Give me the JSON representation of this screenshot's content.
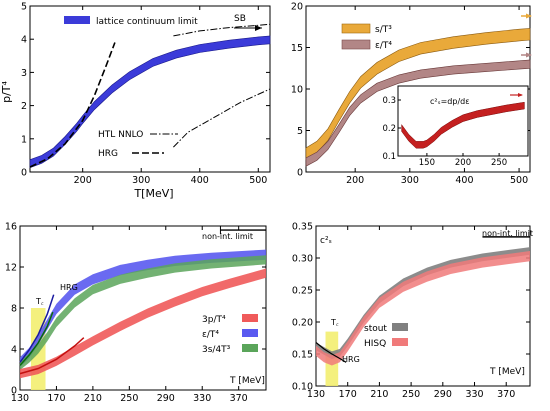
{
  "colors": {
    "blue": "#3b3bd9",
    "orange": "#e9a93a",
    "brown": "#b28686",
    "red": "#f05a5a",
    "purple": "#5a5af0",
    "green": "#5aa55a",
    "yellow": "#f3ee70",
    "gray": "#808080",
    "hisq": "#f07a7a",
    "darkred": "#c42020"
  },
  "chart_data": [
    {
      "type": "line",
      "panel": "top-left",
      "xlabel": "T[MeV]",
      "ylabel": "p/T⁴",
      "xlim": [
        110,
        520
      ],
      "ylim": [
        0,
        5
      ],
      "xticks": [
        "200",
        "300",
        "400",
        "500"
      ],
      "yticks": [
        "0",
        "1",
        "2",
        "3",
        "4",
        "5"
      ],
      "annotation": "SB",
      "legend": [
        "lattice continuum limit",
        "HTL NNLO",
        "HRG"
      ],
      "series": [
        {
          "name": "lattice continuum limit",
          "x": [
            110,
            130,
            150,
            170,
            190,
            200,
            220,
            250,
            280,
            320,
            360,
            400,
            450,
            500,
            520
          ],
          "y": [
            0.25,
            0.38,
            0.6,
            0.95,
            1.35,
            1.58,
            2.0,
            2.5,
            2.9,
            3.3,
            3.55,
            3.72,
            3.85,
            3.95,
            3.98
          ],
          "band": 0.12
        },
        {
          "name": "HRG",
          "x": [
            110,
            140,
            170,
            200,
            220,
            240,
            255
          ],
          "y": [
            0.15,
            0.4,
            0.85,
            1.55,
            2.3,
            3.2,
            3.9
          ]
        },
        {
          "name": "HTL NNLO",
          "x": [
            355,
            400,
            450,
            500,
            520
          ],
          "y": [
            4.1,
            4.25,
            4.35,
            4.42,
            4.45
          ]
        },
        {
          "name": "HTL NNLO",
          "x": [
            355,
            380,
            420,
            470,
            520
          ],
          "y": [
            0.75,
            1.2,
            1.6,
            2.1,
            2.5
          ]
        }
      ]
    },
    {
      "type": "line",
      "panel": "top-right",
      "xlim": [
        110,
        520
      ],
      "ylim": [
        0,
        20
      ],
      "xticks": [
        "200",
        "300",
        "400",
        "500"
      ],
      "yticks": [
        "0",
        "5",
        "10",
        "15",
        "20"
      ],
      "legend": [
        "s/T³",
        "ε/T⁴"
      ],
      "series": [
        {
          "name": "s/T³",
          "x": [
            110,
            130,
            150,
            170,
            190,
            210,
            240,
            280,
            320,
            380,
            440,
            500,
            520
          ],
          "y": [
            2.2,
            3.0,
            4.5,
            6.8,
            9.0,
            10.8,
            12.5,
            14.0,
            14.9,
            15.6,
            16.1,
            16.5,
            16.6
          ],
          "band": 0.7
        },
        {
          "name": "ε/T⁴",
          "x": [
            110,
            130,
            150,
            170,
            190,
            210,
            240,
            280,
            320,
            380,
            440,
            500,
            520
          ],
          "y": [
            1.2,
            1.9,
            3.2,
            5.2,
            7.3,
            8.8,
            10.2,
            11.2,
            11.8,
            12.3,
            12.6,
            12.9,
            13.0
          ],
          "band": 0.5
        }
      ],
      "inset": {
        "label": "c²ₛ=dp/dε",
        "xlim": [
          110,
          290
        ],
        "ylim": [
          0.1,
          0.35
        ],
        "xticks": [
          "150",
          "200",
          "250"
        ],
        "yticks": [
          "0.1",
          "0.2",
          "0.3"
        ],
        "x": [
          115,
          125,
          135,
          145,
          150,
          160,
          170,
          185,
          200,
          220,
          240,
          260,
          285
        ],
        "y": [
          0.2,
          0.165,
          0.14,
          0.14,
          0.145,
          0.165,
          0.19,
          0.215,
          0.235,
          0.25,
          0.26,
          0.27,
          0.28
        ]
      }
    },
    {
      "type": "line",
      "panel": "bottom-left",
      "xlabel": "T [MeV]",
      "xlim": [
        130,
        400
      ],
      "ylim": [
        0,
        16
      ],
      "xticks": [
        "130",
        "170",
        "210",
        "250",
        "290",
        "330",
        "370"
      ],
      "yticks": [
        "0",
        "4",
        "8",
        "12",
        "16"
      ],
      "annotations": [
        "non-int. limit",
        "HRG",
        "T꜀"
      ],
      "legend": [
        "3p/T⁴",
        "ε/T⁴",
        "3s/4T³"
      ],
      "series": [
        {
          "name": "3p/T⁴",
          "x": [
            130,
            150,
            170,
            190,
            210,
            240,
            270,
            300,
            330,
            360,
            400
          ],
          "y": [
            1.6,
            2.0,
            2.8,
            3.8,
            4.8,
            6.2,
            7.5,
            8.6,
            9.6,
            10.4,
            11.4
          ],
          "band": 0.45
        },
        {
          "name": "ε/T⁴",
          "x": [
            130,
            140,
            150,
            160,
            170,
            190,
            210,
            240,
            270,
            300,
            340,
            400
          ],
          "y": [
            2.7,
            3.6,
            4.9,
            6.4,
            7.9,
            9.8,
            10.8,
            11.7,
            12.2,
            12.6,
            12.9,
            13.2
          ],
          "band": 0.5
        },
        {
          "name": "3s/4T³",
          "x": [
            130,
            140,
            150,
            160,
            170,
            190,
            210,
            240,
            270,
            300,
            340,
            400
          ],
          "y": [
            2.4,
            3.1,
            4.0,
            5.2,
            6.6,
            8.5,
            9.8,
            10.8,
            11.4,
            11.9,
            12.3,
            12.7
          ],
          "band": 0.45
        }
      ]
    },
    {
      "type": "line",
      "panel": "bottom-right",
      "ylabel": "c²ₛ",
      "xlabel": "T [MeV]",
      "xlim": [
        130,
        400
      ],
      "ylim": [
        0.1,
        0.35
      ],
      "xticks": [
        "130",
        "170",
        "210",
        "250",
        "290",
        "330",
        "370"
      ],
      "yticks": [
        "0.10",
        "0.15",
        "0.20",
        "0.25",
        "0.30",
        "0.35"
      ],
      "annotations": [
        "non-int. limit",
        "HRG",
        "T꜀"
      ],
      "legend": [
        "stout",
        "HISQ"
      ],
      "series": [
        {
          "name": "stout",
          "x": [
            130,
            140,
            150,
            160,
            170,
            190,
            210,
            240,
            270,
            300,
            340,
            400
          ],
          "y": [
            0.162,
            0.155,
            0.148,
            0.152,
            0.168,
            0.205,
            0.235,
            0.262,
            0.279,
            0.291,
            0.301,
            0.311
          ],
          "band": 0.006
        },
        {
          "name": "HISQ",
          "x": [
            130,
            140,
            150,
            160,
            170,
            190,
            210,
            240,
            270,
            300,
            340,
            400
          ],
          "y": [
            0.155,
            0.145,
            0.14,
            0.145,
            0.162,
            0.2,
            0.23,
            0.255,
            0.271,
            0.283,
            0.293,
            0.303
          ],
          "band": 0.008
        }
      ]
    }
  ]
}
